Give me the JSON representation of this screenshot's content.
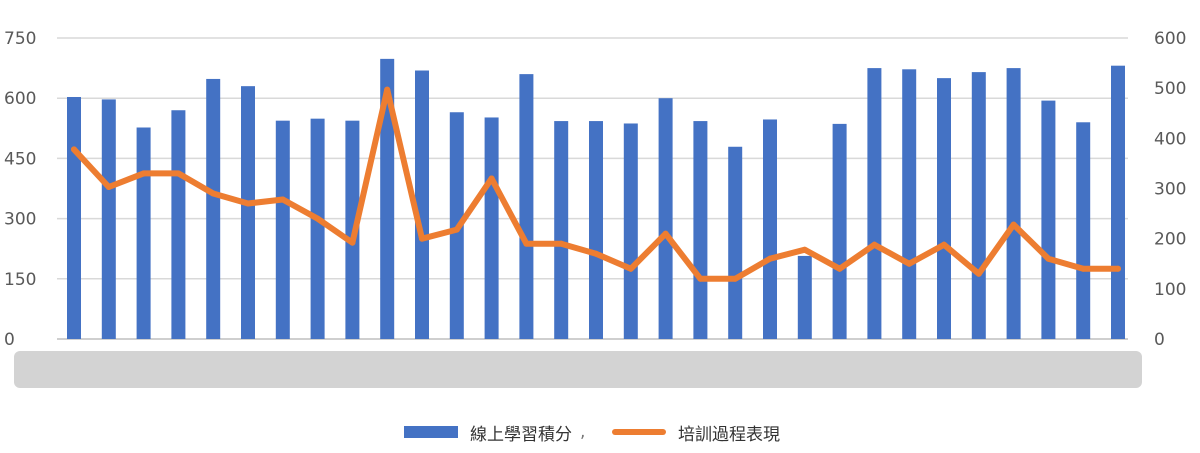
{
  "chart_data": {
    "type": "bar+line",
    "title": "",
    "xlabel": "",
    "ylabel": "",
    "y_left": {
      "lim": [
        0,
        750
      ],
      "ticks": [
        "0",
        "150",
        "300",
        "450",
        "600",
        "750"
      ]
    },
    "y_right": {
      "lim": [
        0,
        600
      ],
      "ticks": [
        "0",
        "100",
        "200",
        "300",
        "400",
        "500",
        "600"
      ]
    },
    "grid": true,
    "legend_position": "bottom",
    "series": [
      {
        "name": "線上學習積分",
        "kind": "bar",
        "axis": "left",
        "color": "#4472C4",
        "values": [
          603,
          597,
          527,
          570,
          648,
          630,
          544,
          549,
          544,
          698,
          669,
          565,
          552,
          660,
          543,
          543,
          537,
          600,
          543,
          479,
          547,
          207,
          536,
          675,
          672,
          650,
          665,
          675,
          594,
          540,
          681
        ]
      },
      {
        "name": "培訓過程表現",
        "kind": "line",
        "axis": "right",
        "color": "#ED7D31",
        "values": [
          378,
          303,
          330,
          330,
          290,
          270,
          278,
          240,
          192,
          497,
          200,
          218,
          320,
          190,
          190,
          170,
          140,
          210,
          120,
          120,
          160,
          178,
          140,
          188,
          150,
          188,
          130,
          228,
          160,
          140,
          140
        ]
      }
    ]
  },
  "legend": {
    "bar_label": "線上學習積分",
    "separator": ",",
    "line_label": "培訓過程表現"
  },
  "colors": {
    "bar": "#4472C4",
    "line": "#ED7D31",
    "grid": "#D9D9D9",
    "axis_band": "#D3D3D3"
  }
}
